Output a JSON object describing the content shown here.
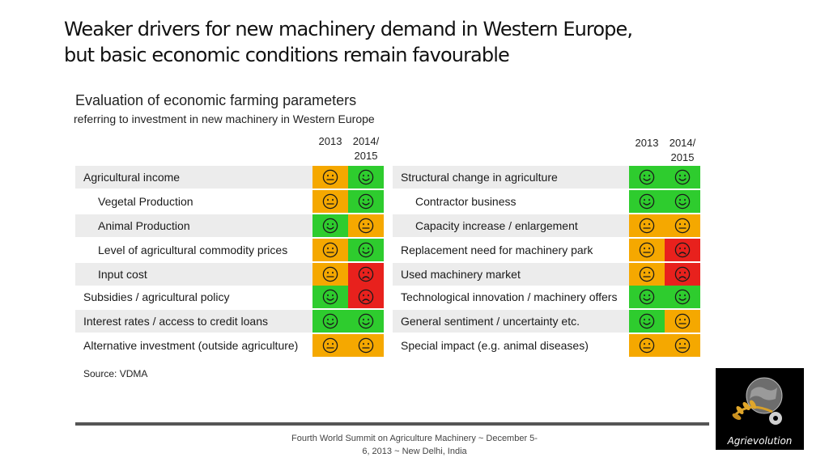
{
  "title_line1": "Weaker drivers for new machinery demand in Western Europe,",
  "title_line2": "but basic economic conditions remain favourable",
  "subtitle": "Evaluation of economic farming parameters",
  "subtitle2": "referring to investment in new machinery in Western Europe",
  "year_2013": "2013",
  "year_2014_line1": "2014/",
  "year_2014_line2": "2015",
  "colors": {
    "green": "#2ecc2e",
    "orange": "#f5a800",
    "red": "#e8211d",
    "face_stroke": "#1a1a1a"
  },
  "left_rows": [
    {
      "label": "Agricultural income",
      "indent": false,
      "c2013": "orange",
      "f2013": "neutral",
      "c2014": "green",
      "f2014": "happy"
    },
    {
      "label": "Vegetal Production",
      "indent": true,
      "c2013": "orange",
      "f2013": "neutral",
      "c2014": "green",
      "f2014": "happy"
    },
    {
      "label": "Animal Production",
      "indent": true,
      "c2013": "green",
      "f2013": "happy",
      "c2014": "orange",
      "f2014": "neutral"
    },
    {
      "label": "Level of agricultural commodity prices",
      "indent": true,
      "c2013": "orange",
      "f2013": "neutral",
      "c2014": "green",
      "f2014": "happy"
    },
    {
      "label": "Input cost",
      "indent": true,
      "c2013": "orange",
      "f2013": "neutral",
      "c2014": "red",
      "f2014": "sad"
    },
    {
      "label": "Subsidies / agricultural policy",
      "indent": false,
      "c2013": "green",
      "f2013": "happy",
      "c2014": "red",
      "f2014": "sad"
    },
    {
      "label": "Interest rates / access to credit loans",
      "indent": false,
      "c2013": "green",
      "f2013": "happy",
      "c2014": "green",
      "f2014": "happy"
    },
    {
      "label": "Alternative investment (outside agriculture)",
      "indent": false,
      "c2013": "orange",
      "f2013": "neutral",
      "c2014": "orange",
      "f2014": "neutral"
    }
  ],
  "right_rows": [
    {
      "label": "Structural change in agriculture",
      "indent": false,
      "c2013": "green",
      "f2013": "happy",
      "c2014": "green",
      "f2014": "happy"
    },
    {
      "label": "Contractor business",
      "indent": true,
      "c2013": "green",
      "f2013": "happy",
      "c2014": "green",
      "f2014": "happy"
    },
    {
      "label": "Capacity increase / enlargement",
      "indent": true,
      "c2013": "orange",
      "f2013": "neutral",
      "c2014": "orange",
      "f2014": "neutral"
    },
    {
      "label": "Replacement need for machinery park",
      "indent": false,
      "c2013": "orange",
      "f2013": "neutral",
      "c2014": "red",
      "f2014": "sad"
    },
    {
      "label": "Used machinery market",
      "indent": false,
      "c2013": "orange",
      "f2013": "neutral",
      "c2014": "red",
      "f2014": "sad"
    },
    {
      "label": "Technological innovation / machinery offers",
      "indent": false,
      "c2013": "green",
      "f2013": "happy",
      "c2014": "green",
      "f2014": "happy"
    },
    {
      "label": "General sentiment / uncertainty etc.",
      "indent": false,
      "c2013": "green",
      "f2013": "happy",
      "c2014": "orange",
      "f2014": "neutral"
    },
    {
      "label": "Special impact (e.g. animal diseases)",
      "indent": false,
      "c2013": "orange",
      "f2013": "neutral",
      "c2014": "orange",
      "f2014": "neutral"
    }
  ],
  "source": "Source: VDMA",
  "footer_line1": "Fourth World Summit on Agriculture Machinery ~ December 5-",
  "footer_line2": "6, 2013 ~ New Delhi, India",
  "logo_text": "Agrievolution",
  "logo_icon": "globe-wheat-gear-icon"
}
